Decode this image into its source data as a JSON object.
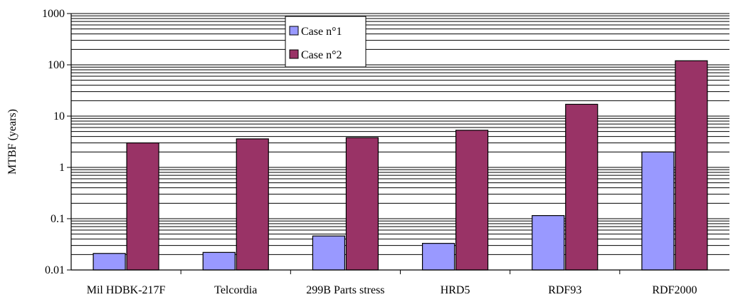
{
  "chart_data": {
    "type": "bar",
    "title": "",
    "xlabel": "",
    "ylabel": "MTBF (years)",
    "yscale": "log",
    "ylim": [
      0.01,
      1000
    ],
    "ytick_labels": [
      "0.01",
      "0.1",
      "1",
      "10",
      "100",
      "1000"
    ],
    "ytick_values": [
      0.01,
      0.1,
      1,
      10,
      100,
      1000
    ],
    "grid": true,
    "legend_position": "top-center",
    "categories": [
      "Mil HDBK-217F",
      "Telcordia",
      "299B Parts stress",
      "HRD5",
      "RDF93",
      "RDF2000"
    ],
    "series": [
      {
        "name": "Case n°1",
        "color": "#9999ff",
        "values": [
          0.021,
          0.022,
          0.046,
          0.033,
          0.115,
          2.0
        ]
      },
      {
        "name": "Case n°2",
        "color": "#993366",
        "values": [
          3.0,
          3.6,
          3.8,
          5.3,
          17.0,
          120.0
        ]
      }
    ]
  }
}
